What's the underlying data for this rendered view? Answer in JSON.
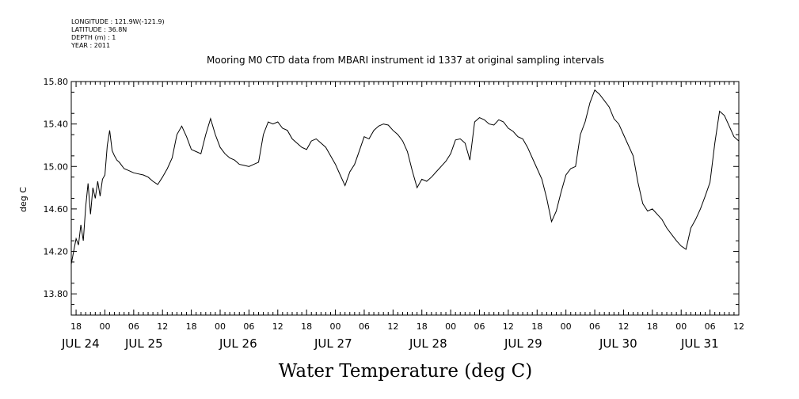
{
  "meta": {
    "longitude": "LONGITUDE : 121.9W(-121.9)",
    "latitude": "LATITUDE : 36.8N",
    "depth": "DEPTH (m) : 1",
    "year": "YEAR : 2011"
  },
  "chart_data": {
    "type": "line",
    "title": "Mooring M0 CTD data from MBARI instrument id 1337 at original sampling intervals",
    "xlabel": "Water Temperature (deg C)",
    "ylabel": "deg C",
    "xlim": [
      -7,
      132
    ],
    "ylim": [
      13.6,
      15.8
    ],
    "x_units": "hours since JUL 24 00:00 (2011)",
    "grid": false,
    "y_ticks": [
      13.8,
      14.2,
      14.6,
      15.0,
      15.4,
      15.8
    ],
    "y_tick_labels": [
      "13.80",
      "14.20",
      "14.60",
      "15.00",
      "15.40",
      "15.80"
    ],
    "x_hour_ticks": [
      {
        "h": -6,
        "label": "18"
      },
      {
        "h": 0,
        "label": "00"
      },
      {
        "h": 6,
        "label": "06"
      },
      {
        "h": 12,
        "label": "12"
      },
      {
        "h": 18,
        "label": "18"
      },
      {
        "h": 24,
        "label": "00"
      },
      {
        "h": 30,
        "label": "06"
      },
      {
        "h": 36,
        "label": "12"
      },
      {
        "h": 42,
        "label": "18"
      },
      {
        "h": 48,
        "label": "00"
      },
      {
        "h": 54,
        "label": "06"
      },
      {
        "h": 60,
        "label": "12"
      },
      {
        "h": 66,
        "label": "18"
      },
      {
        "h": 72,
        "label": "00"
      },
      {
        "h": 78,
        "label": "06"
      },
      {
        "h": 84,
        "label": "12"
      },
      {
        "h": 90,
        "label": "18"
      },
      {
        "h": 96,
        "label": "00"
      },
      {
        "h": 102,
        "label": "06"
      },
      {
        "h": 108,
        "label": "12"
      },
      {
        "h": 114,
        "label": "18"
      },
      {
        "h": 120,
        "label": "00"
      },
      {
        "h": 126,
        "label": "06"
      },
      {
        "h": 132,
        "label": "12"
      }
    ],
    "x_day_labels": [
      {
        "h": -6,
        "label": "JUL 24"
      },
      {
        "h": 18,
        "label": "JUL 25"
      },
      {
        "h": 42,
        "label": "JUL 26"
      },
      {
        "h": 66,
        "label": "JUL 27"
      },
      {
        "h": 90,
        "label": "JUL 28"
      },
      {
        "h": 114,
        "label": "JUL 29"
      },
      {
        "h": 138,
        "label": "JUL 30"
      },
      {
        "h": 162,
        "label": "JUL 31"
      }
    ],
    "series": [
      {
        "x": [
          -7.0,
          -6.5,
          -6.0,
          -5.5,
          -5.0,
          -4.5,
          -4.0,
          -3.5,
          -3.0,
          -2.5,
          -2.0,
          -1.5,
          -1.0,
          -0.5,
          0.0,
          0.5,
          1.0,
          1.5,
          2.0,
          2.5,
          3.0,
          4.0,
          5.0,
          6.0,
          7.0,
          8.0,
          9.0,
          10.0,
          11.0,
          12.0,
          13.0,
          14.0,
          15.0,
          16.0,
          17.0,
          18.0,
          19.0,
          20.0,
          21.0,
          22.0,
          23.0,
          24.0,
          25.0,
          26.0,
          27.0,
          28.0,
          29.0,
          30.0,
          31.0,
          32.0,
          33.0,
          34.0,
          35.0,
          36.0,
          37.0,
          38.0,
          39.0,
          40.0,
          41.0,
          42.0,
          43.0,
          44.0,
          45.0,
          46.0,
          47.0,
          48.0,
          49.0,
          50.0,
          51.0,
          52.0,
          53.0,
          54.0,
          55.0,
          56.0,
          57.0,
          58.0,
          59.0,
          60.0,
          61.0,
          62.0,
          63.0,
          64.0,
          65.0,
          66.0,
          67.0,
          68.0,
          69.0,
          70.0,
          71.0,
          72.0,
          73.0,
          74.0,
          75.0,
          76.0,
          77.0,
          78.0,
          79.0,
          80.0,
          81.0,
          82.0,
          83.0,
          84.0,
          85.0,
          86.0,
          87.0,
          88.0,
          89.0,
          90.0,
          91.0,
          92.0,
          93.0,
          94.0,
          95.0,
          96.0,
          97.0,
          98.0,
          99.0,
          100.0,
          101.0,
          102.0,
          103.0,
          104.0,
          105.0,
          106.0,
          107.0,
          108.0,
          109.0,
          110.0,
          111.0,
          112.0,
          113.0,
          114.0,
          115.0,
          116.0,
          117.0,
          118.0,
          119.0,
          120.0,
          121.0,
          122.0,
          123.0,
          124.0,
          125.0,
          126.0,
          127.0,
          128.0,
          129.0,
          130.0,
          131.0,
          132.0
        ],
        "y": [
          14.08,
          14.2,
          14.32,
          14.26,
          14.45,
          14.3,
          14.62,
          14.84,
          14.55,
          14.8,
          14.7,
          14.86,
          14.72,
          14.88,
          14.92,
          15.2,
          15.34,
          15.15,
          15.1,
          15.06,
          15.04,
          14.98,
          14.96,
          14.94,
          14.93,
          14.92,
          14.9,
          14.86,
          14.83,
          14.9,
          14.98,
          15.08,
          15.3,
          15.38,
          15.28,
          15.16,
          15.14,
          15.12,
          15.3,
          15.45,
          15.3,
          15.18,
          15.12,
          15.08,
          15.06,
          15.02,
          15.01,
          15.0,
          15.02,
          15.04,
          15.3,
          15.42,
          15.4,
          15.42,
          15.36,
          15.34,
          15.26,
          15.22,
          15.18,
          15.16,
          15.24,
          15.26,
          15.22,
          15.18,
          15.1,
          15.02,
          14.92,
          14.82,
          14.95,
          15.02,
          15.15,
          15.28,
          15.26,
          15.34,
          15.38,
          15.4,
          15.39,
          15.34,
          15.3,
          15.24,
          15.14,
          14.96,
          14.8,
          14.88,
          14.86,
          14.9,
          14.95,
          15.0,
          15.05,
          15.12,
          15.25,
          15.26,
          15.22,
          15.06,
          15.42,
          15.46,
          15.44,
          15.4,
          15.39,
          15.44,
          15.42,
          15.36,
          15.33,
          15.28,
          15.26,
          15.18,
          15.08,
          14.98,
          14.88,
          14.7,
          14.48,
          14.58,
          14.76,
          14.92,
          14.98,
          15.0,
          15.3,
          15.42,
          15.6,
          15.72,
          15.68,
          15.62,
          15.56,
          15.45,
          15.4,
          15.3,
          15.2,
          15.1,
          14.85,
          14.65,
          14.58,
          14.6,
          14.55,
          14.5,
          14.42,
          14.36,
          14.3,
          14.25,
          14.22,
          14.42,
          14.5,
          14.6,
          14.72,
          14.85,
          15.22,
          15.52,
          15.48,
          15.38,
          15.28,
          15.24
        ]
      }
    ]
  }
}
